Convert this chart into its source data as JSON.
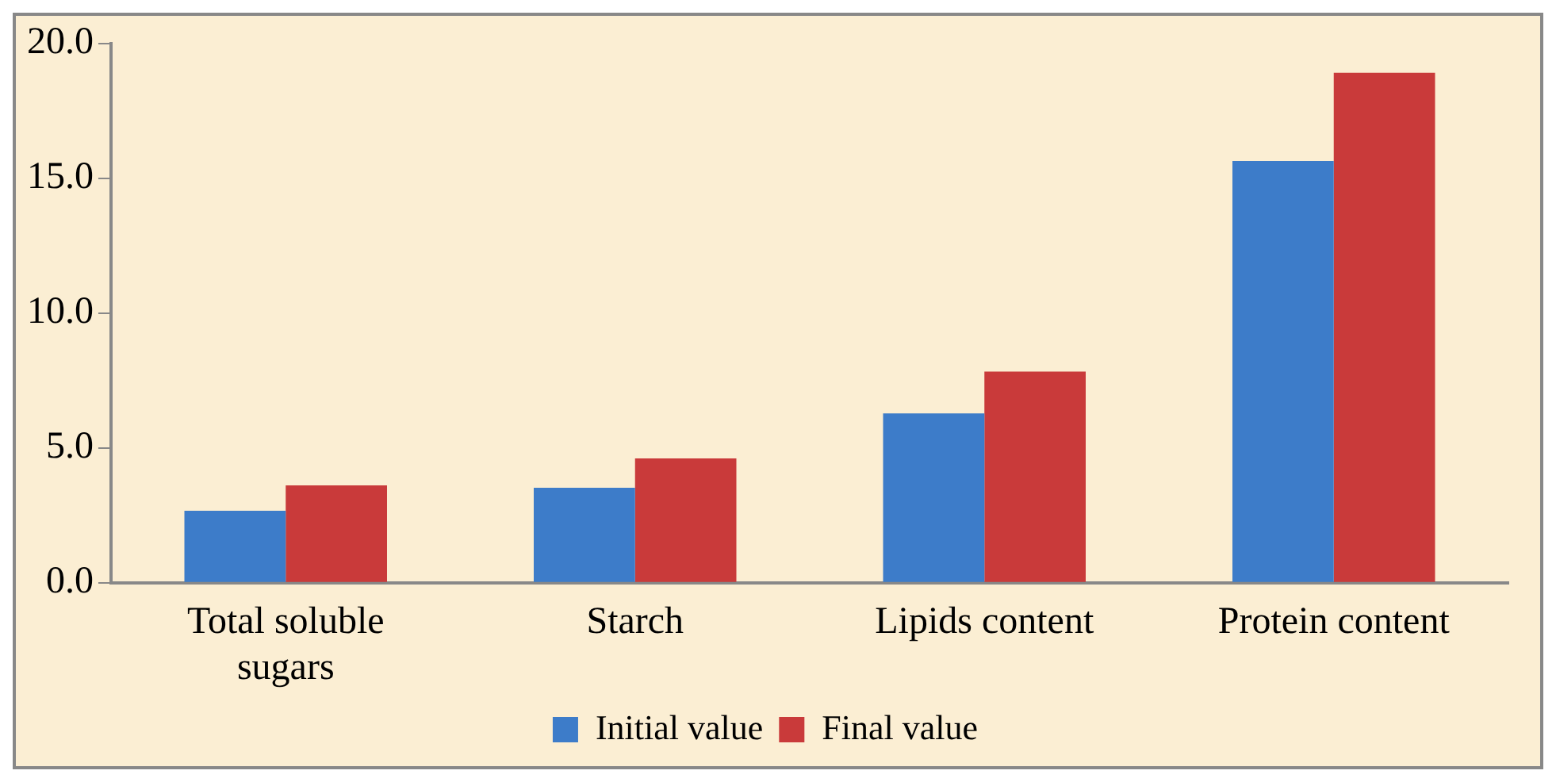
{
  "chart_data": {
    "type": "bar",
    "categories": [
      [
        "Total soluble",
        "sugars"
      ],
      "Starch",
      "Lipids content",
      "Protein content"
    ],
    "series": [
      {
        "name": "Initial value",
        "color": "#3d7cc9",
        "values": [
          2.67,
          3.52,
          6.28,
          15.64
        ]
      },
      {
        "name": "Final value",
        "color": "#c93a3a",
        "values": [
          3.61,
          4.61,
          7.83,
          18.91
        ]
      }
    ],
    "ylim": [
      0,
      20
    ],
    "yticks": [
      {
        "value": 0,
        "label": "0.0"
      },
      {
        "value": 5,
        "label": "5.0"
      },
      {
        "value": 10,
        "label": "10.0"
      },
      {
        "value": 15,
        "label": "15.0"
      },
      {
        "value": 20,
        "label": "20.0"
      }
    ],
    "grid": false,
    "legend": "bottom"
  }
}
